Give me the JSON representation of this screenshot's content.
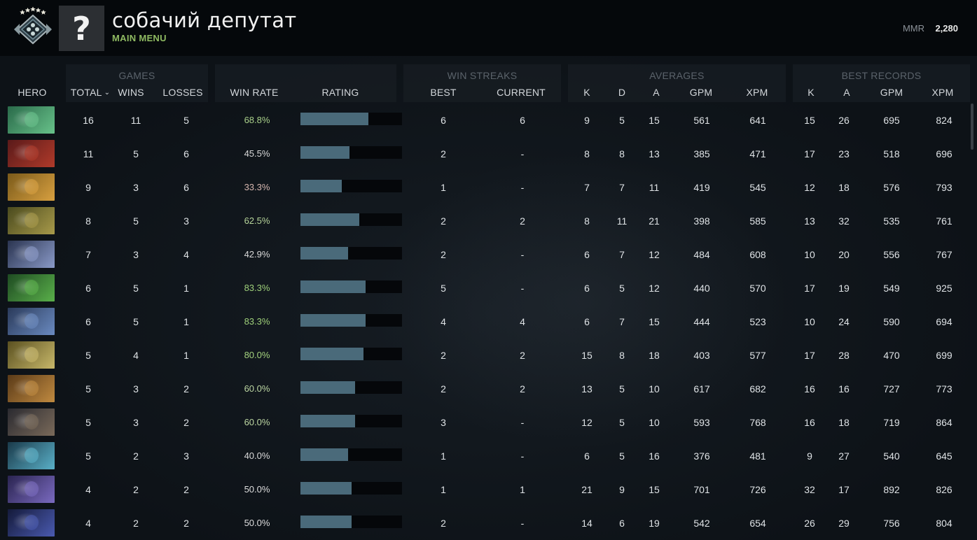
{
  "header": {
    "player_name": "собачий депутат",
    "main_menu_label": "MAIN MENU",
    "avatar_glyph": "?",
    "mmr_label": "MMR",
    "mmr_value": "2,280"
  },
  "table": {
    "groups": {
      "games": "GAMES",
      "win_streaks": "WIN STREAKS",
      "averages": "AVERAGES",
      "best_records": "BEST RECORDS"
    },
    "columns": {
      "hero": "HERO",
      "total": "TOTAL",
      "wins": "WINS",
      "losses": "LOSSES",
      "win_rate": "WIN RATE",
      "rating": "RATING",
      "best": "BEST",
      "current": "CURRENT",
      "avg_k": "K",
      "avg_d": "D",
      "avg_a": "A",
      "avg_gpm": "GPM",
      "avg_xpm": "XPM",
      "rec_k": "K",
      "rec_a": "A",
      "rec_gpm": "GPM",
      "rec_xpm": "XPM"
    },
    "rows": [
      {
        "total": "16",
        "wins": "11",
        "losses": "5",
        "win_rate": "68.8%",
        "rating": 0.67,
        "best": "6",
        "current": "6",
        "k": "9",
        "d": "5",
        "a": "15",
        "gpm": "561",
        "xpm": "641",
        "rk": "15",
        "ra": "26",
        "rgpm": "695",
        "rxpm": "824",
        "portrait": [
          "#2a6a4a",
          "#68c28a"
        ],
        "wr_color": "#a9d08a"
      },
      {
        "total": "11",
        "wins": "5",
        "losses": "6",
        "win_rate": "45.5%",
        "rating": 0.48,
        "best": "2",
        "current": "-",
        "k": "8",
        "d": "8",
        "a": "13",
        "gpm": "385",
        "xpm": "471",
        "rk": "17",
        "ra": "23",
        "rgpm": "518",
        "rxpm": "696",
        "portrait": [
          "#5a1a1a",
          "#b03a2a"
        ],
        "wr_color": "#d9d9d9"
      },
      {
        "total": "9",
        "wins": "3",
        "losses": "6",
        "win_rate": "33.3%",
        "rating": 0.41,
        "best": "1",
        "current": "-",
        "k": "7",
        "d": "7",
        "a": "11",
        "gpm": "419",
        "xpm": "545",
        "rk": "12",
        "ra": "18",
        "rgpm": "576",
        "rxpm": "793",
        "portrait": [
          "#7a5a1a",
          "#d8a040"
        ],
        "wr_color": "#d7b8b0"
      },
      {
        "total": "8",
        "wins": "5",
        "losses": "3",
        "win_rate": "62.5%",
        "rating": 0.58,
        "best": "2",
        "current": "2",
        "k": "8",
        "d": "11",
        "a": "21",
        "gpm": "398",
        "xpm": "585",
        "rk": "13",
        "ra": "32",
        "rgpm": "535",
        "rxpm": "761",
        "portrait": [
          "#4a4a1e",
          "#a89a4a"
        ],
        "wr_color": "#b6d49a"
      },
      {
        "total": "7",
        "wins": "3",
        "losses": "4",
        "win_rate": "42.9%",
        "rating": 0.47,
        "best": "2",
        "current": "-",
        "k": "6",
        "d": "7",
        "a": "12",
        "gpm": "484",
        "xpm": "608",
        "rk": "10",
        "ra": "20",
        "rgpm": "556",
        "rxpm": "767",
        "portrait": [
          "#2a3450",
          "#8a9ac8"
        ],
        "wr_color": "#d9d9d9"
      },
      {
        "total": "6",
        "wins": "5",
        "losses": "1",
        "win_rate": "83.3%",
        "rating": 0.64,
        "best": "5",
        "current": "-",
        "k": "6",
        "d": "5",
        "a": "12",
        "gpm": "440",
        "xpm": "570",
        "rk": "17",
        "ra": "19",
        "rgpm": "549",
        "rxpm": "925",
        "portrait": [
          "#1e4a22",
          "#5ab04a"
        ],
        "wr_color": "#9fd07a"
      },
      {
        "total": "6",
        "wins": "5",
        "losses": "1",
        "win_rate": "83.3%",
        "rating": 0.64,
        "best": "4",
        "current": "4",
        "k": "6",
        "d": "7",
        "a": "15",
        "gpm": "444",
        "xpm": "523",
        "rk": "10",
        "ra": "24",
        "rgpm": "590",
        "rxpm": "694",
        "portrait": [
          "#2a3a5a",
          "#6a8ac0"
        ],
        "wr_color": "#9fd07a"
      },
      {
        "total": "5",
        "wins": "4",
        "losses": "1",
        "win_rate": "80.0%",
        "rating": 0.62,
        "best": "2",
        "current": "2",
        "k": "15",
        "d": "8",
        "a": "18",
        "gpm": "403",
        "xpm": "577",
        "rk": "17",
        "ra": "28",
        "rgpm": "470",
        "rxpm": "699",
        "portrait": [
          "#5a5020",
          "#c8b86a"
        ],
        "wr_color": "#a4d27e"
      },
      {
        "total": "5",
        "wins": "3",
        "losses": "2",
        "win_rate": "60.0%",
        "rating": 0.54,
        "best": "2",
        "current": "2",
        "k": "13",
        "d": "5",
        "a": "10",
        "gpm": "617",
        "xpm": "682",
        "rk": "16",
        "ra": "16",
        "rgpm": "727",
        "rxpm": "773",
        "portrait": [
          "#5a3a18",
          "#c08a40"
        ],
        "wr_color": "#bcd6a2"
      },
      {
        "total": "5",
        "wins": "3",
        "losses": "2",
        "win_rate": "60.0%",
        "rating": 0.54,
        "best": "3",
        "current": "-",
        "k": "12",
        "d": "5",
        "a": "10",
        "gpm": "593",
        "xpm": "768",
        "rk": "16",
        "ra": "18",
        "rgpm": "719",
        "rxpm": "864",
        "portrait": [
          "#2a2a30",
          "#7a6a5a"
        ],
        "wr_color": "#bcd6a2"
      },
      {
        "total": "5",
        "wins": "2",
        "losses": "3",
        "win_rate": "40.0%",
        "rating": 0.47,
        "best": "1",
        "current": "-",
        "k": "6",
        "d": "5",
        "a": "16",
        "gpm": "376",
        "xpm": "481",
        "rk": "9",
        "ra": "27",
        "rgpm": "540",
        "rxpm": "645",
        "portrait": [
          "#1a3a4a",
          "#5ab0c8"
        ],
        "wr_color": "#d9d9d9"
      },
      {
        "total": "4",
        "wins": "2",
        "losses": "2",
        "win_rate": "50.0%",
        "rating": 0.5,
        "best": "1",
        "current": "1",
        "k": "21",
        "d": "9",
        "a": "15",
        "gpm": "701",
        "xpm": "726",
        "rk": "32",
        "ra": "17",
        "rgpm": "892",
        "rxpm": "826",
        "portrait": [
          "#2a2450",
          "#7a6ac0"
        ],
        "wr_color": "#dedede"
      },
      {
        "total": "4",
        "wins": "2",
        "losses": "2",
        "win_rate": "50.0%",
        "rating": 0.5,
        "best": "2",
        "current": "-",
        "k": "14",
        "d": "6",
        "a": "19",
        "gpm": "542",
        "xpm": "654",
        "rk": "26",
        "ra": "29",
        "rgpm": "756",
        "rxpm": "804",
        "portrait": [
          "#141a3a",
          "#4a5ab0"
        ],
        "wr_color": "#dedede"
      }
    ]
  },
  "colors": {
    "accent_green": "#8fba62",
    "rating_bar": "#4a6a7a",
    "background": "#0d1217"
  }
}
